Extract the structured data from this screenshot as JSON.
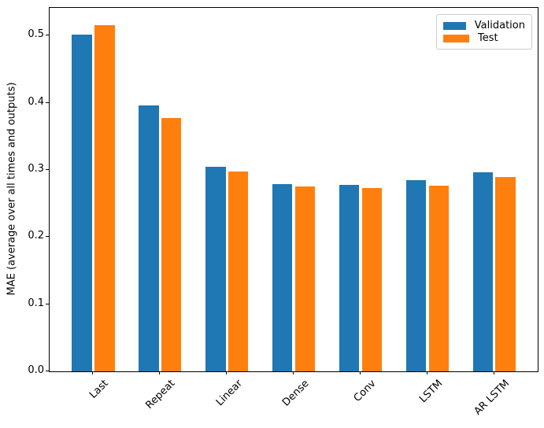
{
  "chart_data": {
    "type": "bar",
    "title": "",
    "xlabel": "",
    "ylabel": "MAE (average over all times and outputs)",
    "categories": [
      "Last",
      "Repeat",
      "Linear",
      "Dense",
      "Conv",
      "LSTM",
      "AR LSTM"
    ],
    "series": [
      {
        "name": "Validation",
        "color": "#1f77b4",
        "values": [
          0.501,
          0.396,
          0.305,
          0.279,
          0.278,
          0.285,
          0.296
        ]
      },
      {
        "name": "Test",
        "color": "#ff7f0e",
        "values": [
          0.516,
          0.377,
          0.298,
          0.275,
          0.273,
          0.276,
          0.29
        ]
      }
    ],
    "yticks": [
      0.0,
      0.1,
      0.2,
      0.3,
      0.4,
      0.5
    ],
    "ytick_labels": [
      "0.0",
      "0.1",
      "0.2",
      "0.3",
      "0.4",
      "0.5"
    ],
    "ylim": [
      0,
      0.5413
    ],
    "xlim": [
      -0.652,
      6.652
    ],
    "bar_width_units": 0.3,
    "bar_offsets_units": [
      -0.17,
      0.17
    ],
    "x_tick_rotation_deg": -45,
    "grid": false,
    "legend_position": "upper right",
    "axis_color": "#000000",
    "background_color": "#ffffff"
  },
  "legend": {
    "items": [
      {
        "label": "Validation",
        "color": "#1f77b4"
      },
      {
        "label": "Test",
        "color": "#ff7f0e"
      }
    ]
  }
}
